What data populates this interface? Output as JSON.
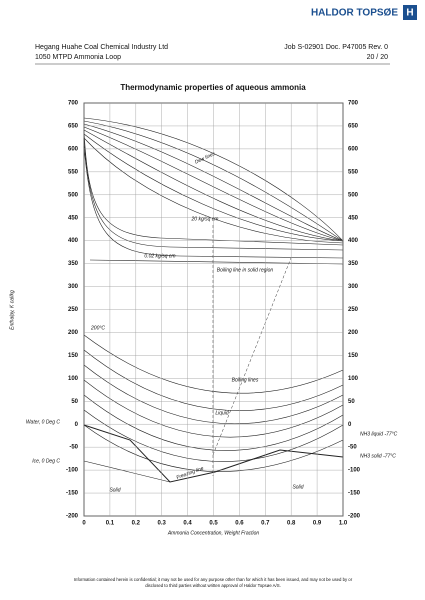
{
  "header": {
    "logo": "HALDOR TOPSØE",
    "client": [
      "Hegang Huahe Coal Chemical Industry Ltd",
      "1050 MTPD Ammonia Loop"
    ],
    "doc": [
      "Job S-02901  Doc. P47005  Rev. 0",
      "20 / 20"
    ]
  },
  "title": "Thermodynamic properties of aqueous ammonia",
  "figure": {
    "y_label": "Enthalpy, K cal/kg",
    "x_label": "Ammonia Concentration, Weight Fraction",
    "yticks": [
      700,
      650,
      600,
      550,
      500,
      450,
      400,
      350,
      300,
      250,
      200,
      150,
      100,
      50,
      0,
      -50,
      -100,
      -150,
      -200
    ],
    "xticks": [
      "0",
      "0.1",
      "0.2",
      "0.3",
      "0.4",
      "0.5",
      "0.6",
      "0.7",
      "0.8",
      "0.9",
      "1.0"
    ],
    "left_notes": [
      "Water, 0 Deg C",
      "Ice, 0 Deg C"
    ],
    "right_notes": [
      "NH3 liquid -77°C",
      "NH3 solid -77°C"
    ],
    "annotations": [
      "Dew lines",
      "Boiling lines",
      "Liquid",
      "Freezing line",
      "Solid",
      "Solid",
      "Boiling line in solid region",
      "200°C",
      "20 kg/sq cm",
      "0.02 kg/sq cm"
    ]
  },
  "footer": [
    "Information contained herein is confidential; it may not be used for any purpose other than for which it has been issued, and may not be used by or",
    "disclosed to third parties without written approval of Haldor Topsøe A/S."
  ]
}
